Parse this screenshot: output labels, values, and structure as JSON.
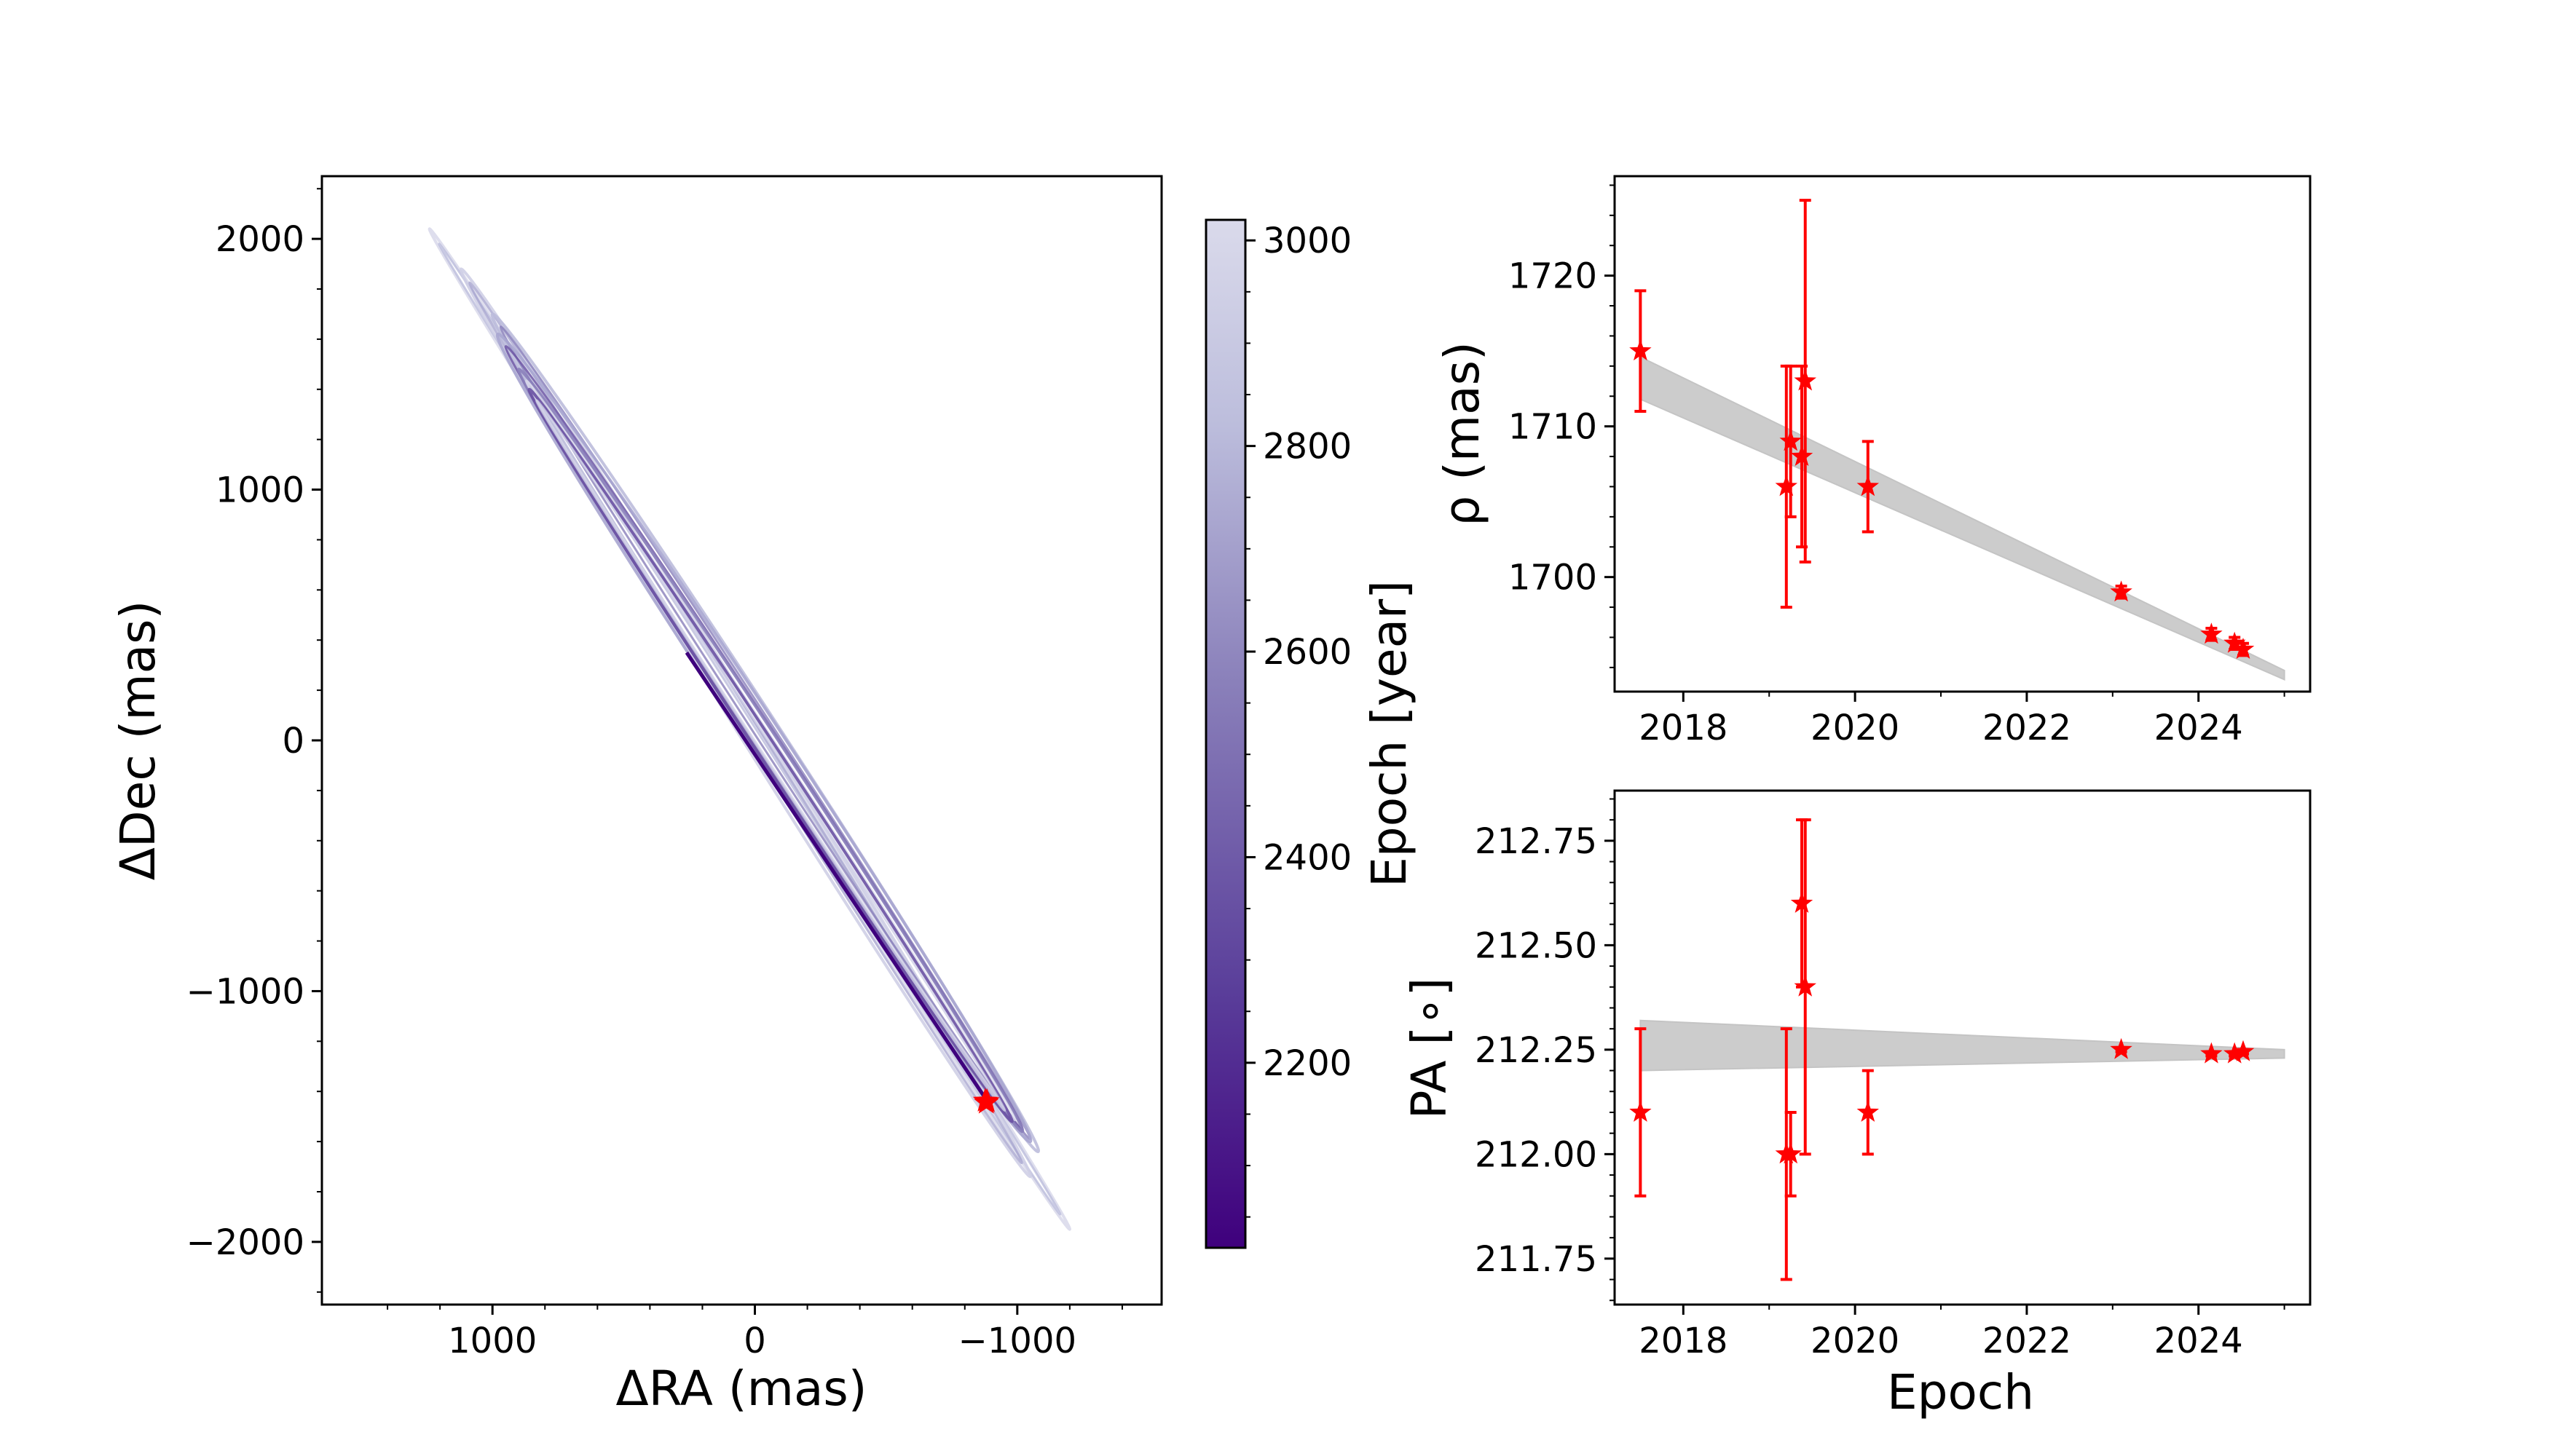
{
  "chart_data": [
    {
      "type": "line",
      "panel": "orbit",
      "xlabel": "ΔRA (mas)",
      "ylabel": "ΔDec (mas)",
      "xlim": [
        1650,
        -1550
      ],
      "ylim": [
        -2250,
        2250
      ],
      "x_inverted": true,
      "xticks": [
        1000,
        0,
        -1000
      ],
      "xtick_labels": [
        "1000",
        "0",
        "−1000"
      ],
      "yticks": [
        2000,
        1000,
        0,
        -1000,
        -2000
      ],
      "ytick_labels": [
        "2000",
        "1000",
        "0",
        "−1000",
        "−2000"
      ],
      "colormap": [
        "#3f007d",
        "#dadaeb"
      ],
      "orbit_tracks": [
        {
          "from": [
            1240,
            2040
          ],
          "to": [
            -1200,
            -1950
          ],
          "width": 60
        },
        {
          "from": [
            1120,
            1880
          ],
          "to": [
            -1050,
            -1740
          ],
          "width": 90
        },
        {
          "from": [
            1000,
            1700
          ],
          "to": [
            -1080,
            -1640
          ],
          "width": 110
        },
        {
          "from": [
            980,
            1620
          ],
          "to": [
            -1050,
            -1600
          ],
          "width": 130
        },
        {
          "from": [
            900,
            1480
          ],
          "to": [
            -1020,
            -1560
          ],
          "width": 90
        },
        {
          "from": [
            860,
            1400
          ],
          "to": [
            -980,
            -1520
          ],
          "width": 70
        }
      ],
      "dark_track": {
        "from": [
          260,
          350
        ],
        "to": [
          -880,
          -1430
        ]
      },
      "astrometry": [
        [
          -878,
          -1438
        ],
        [
          -882,
          -1446
        ],
        [
          -885,
          -1440
        ]
      ]
    },
    {
      "type": "colorbar",
      "label": "Epoch [year]",
      "range": [
        2020,
        3020
      ],
      "ticks": [
        2200,
        2400,
        2600,
        2800,
        3000
      ],
      "tick_labels": [
        "2200",
        "2400",
        "2600",
        "2800",
        "3000"
      ],
      "colors": [
        "#3f007d",
        "#5a3e9a",
        "#8a80ba",
        "#bcbddc",
        "#dadaeb"
      ]
    },
    {
      "type": "scatter",
      "panel": "separation",
      "ylabel": "ρ (mas)",
      "xlim": [
        2017.2,
        2025.3
      ],
      "ylim": [
        1692.4,
        1726.6
      ],
      "xticks": [
        2018,
        2020,
        2022,
        2024
      ],
      "xtick_labels": [
        "2018",
        "2020",
        "2022",
        "2024"
      ],
      "yticks": [
        1700,
        1710,
        1720
      ],
      "ytick_labels": [
        "1700",
        "1710",
        "1720"
      ],
      "model_band": {
        "x": [
          2017.5,
          2025.0
        ],
        "upper": [
          1714.6,
          1693.8
        ],
        "lower": [
          1711.8,
          1693.2
        ]
      },
      "x": [
        2017.5,
        2019.2,
        2019.25,
        2019.38,
        2019.42,
        2020.15,
        2023.1,
        2024.15,
        2024.42,
        2024.52
      ],
      "y": [
        1715,
        1706,
        1709,
        1708,
        1713,
        1706,
        1699,
        1696.2,
        1695.6,
        1695.2
      ],
      "yerr": [
        4,
        8,
        5,
        6,
        12,
        3,
        0.4,
        0.4,
        0.4,
        0.4
      ]
    },
    {
      "type": "scatter",
      "panel": "position-angle",
      "xlabel": "Epoch",
      "ylabel": "PA [∘]",
      "xlim": [
        2017.2,
        2025.3
      ],
      "ylim": [
        211.64,
        212.87
      ],
      "xticks": [
        2018,
        2020,
        2022,
        2024
      ],
      "xtick_labels": [
        "2018",
        "2020",
        "2022",
        "2024"
      ],
      "yticks": [
        211.75,
        212.0,
        212.25,
        212.5,
        212.75
      ],
      "ytick_labels": [
        "211.75",
        "212.00",
        "212.25",
        "212.50",
        "212.75"
      ],
      "model_band": {
        "x": [
          2017.5,
          2025.0
        ],
        "upper": [
          212.32,
          212.25
        ],
        "lower": [
          212.2,
          212.23
        ]
      },
      "x": [
        2017.5,
        2019.2,
        2019.25,
        2019.38,
        2019.42,
        2020.15,
        2023.1,
        2024.15,
        2024.42,
        2024.52
      ],
      "y": [
        212.1,
        212.0,
        212.0,
        212.6,
        212.4,
        212.1,
        212.25,
        212.24,
        212.24,
        212.245
      ],
      "yerr": [
        0.2,
        0.3,
        0.1,
        0.2,
        0.4,
        0.1,
        0.005,
        0.005,
        0.005,
        0.005
      ]
    }
  ]
}
